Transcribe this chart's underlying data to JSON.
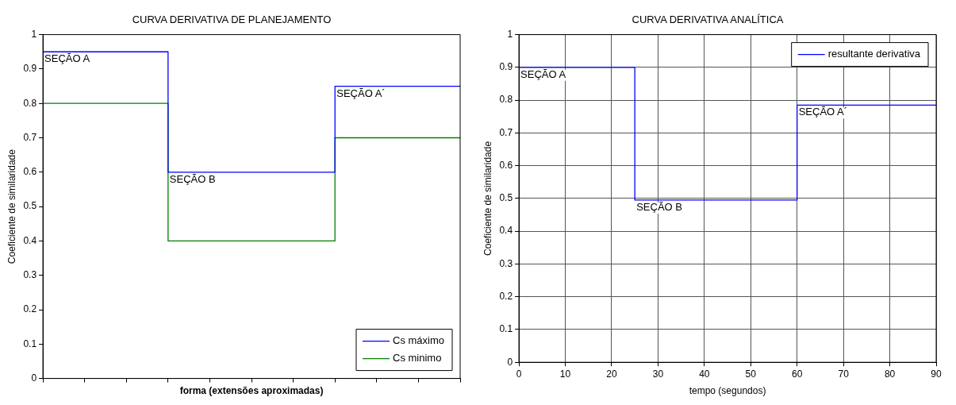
{
  "chart_data": [
    {
      "type": "step",
      "title": "CURVA DERIVATIVA DE PLANEJAMENTO",
      "xlabel": "forma (extensões aproximadas)",
      "ylabel": "Coeficiente de similaridade",
      "categories": [
        null,
        null,
        null,
        null,
        null,
        null,
        null,
        null,
        null,
        null,
        null
      ],
      "series": [
        {
          "name": "Cs máximo",
          "color": "#0000ff",
          "values": [
            0.95,
            0.95,
            0.95,
            0.6,
            0.6,
            0.6,
            0.6,
            0.85,
            0.85,
            0.85,
            0.85
          ]
        },
        {
          "name": "Cs minimo",
          "color": "#008000",
          "values": [
            0.8,
            0.8,
            0.8,
            0.4,
            0.4,
            0.4,
            0.4,
            0.7,
            0.7,
            0.7,
            0.7
          ]
        }
      ],
      "ylim": [
        0,
        1
      ],
      "yticks": [
        0,
        0.1,
        0.2,
        0.3,
        0.4,
        0.5,
        0.6,
        0.7,
        0.8,
        0.9,
        1
      ],
      "tick_labels": "y",
      "legend": "bottom right",
      "marker": "none",
      "annotations": [
        "SEÇÃO A",
        "SEÇÃO B",
        "SEÇÃO A´"
      ]
    },
    {
      "type": "step",
      "title": "CURVA DERIVATIVA ANALÍTICA",
      "xlabel": "tempo (segundos)",
      "ylabel": "Coeficiente de similaridade",
      "x": [
        0,
        25,
        60,
        90
      ],
      "series": [
        {
          "name": "resultante derivativa",
          "color": "#0000ff",
          "values": [
            0.9,
            0.495,
            0.785,
            0.785
          ]
        }
      ],
      "xlim": [
        0,
        90
      ],
      "xticks": [
        0,
        10,
        20,
        30,
        40,
        50,
        60,
        70,
        80,
        90
      ],
      "ylim": [
        0,
        1
      ],
      "yticks": [
        0,
        0.1,
        0.2,
        0.3,
        0.4,
        0.5,
        0.6,
        0.7,
        0.8,
        0.9,
        1
      ],
      "grid": true,
      "legend": "top right",
      "marker": "none",
      "annotations": [
        {
          "text": "SEÇÃO A",
          "x": 0,
          "y": 0.9
        },
        {
          "text": "SEÇÃO B",
          "x": 25,
          "y": 0.495
        },
        {
          "text": "SEÇÃO A´",
          "x": 60,
          "y": 0.785
        }
      ]
    }
  ]
}
